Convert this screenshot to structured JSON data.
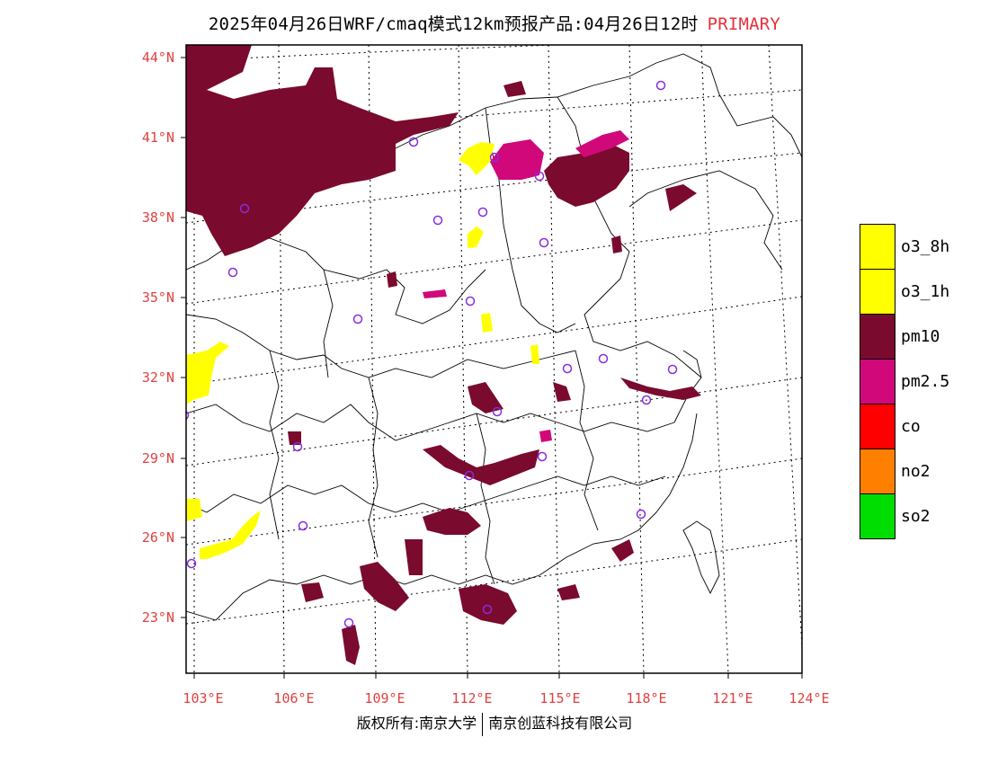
{
  "header": {
    "title": "2025年04月26日WRF/cmaq模式12km预报产品:04月26日12时",
    "primary_label": "PRIMARY",
    "primary_color": "#e8303a"
  },
  "map": {
    "lat_labels": [
      "44°N",
      "41°N",
      "38°N",
      "35°N",
      "32°N",
      "29°N",
      "26°N",
      "23°N"
    ],
    "lon_labels": [
      "103°E",
      "106°E",
      "109°E",
      "112°E",
      "115°E",
      "118°E",
      "121°E",
      "124°E"
    ],
    "label_color": "#e04040"
  },
  "legend": {
    "items": [
      {
        "label": "o3_8h",
        "color": "#ffff00"
      },
      {
        "label": "o3_1h",
        "color": "#ffff00"
      },
      {
        "label": "pm10",
        "color": "#7a0a2e"
      },
      {
        "label": "pm2.5",
        "color": "#d0087a"
      },
      {
        "label": "co",
        "color": "#ff0000"
      },
      {
        "label": "no2",
        "color": "#ff8000"
      },
      {
        "label": "so2",
        "color": "#00dd00"
      }
    ]
  },
  "footer": {
    "left": "版权所有:南京大学",
    "right": "南京创蓝科技有限公司"
  }
}
